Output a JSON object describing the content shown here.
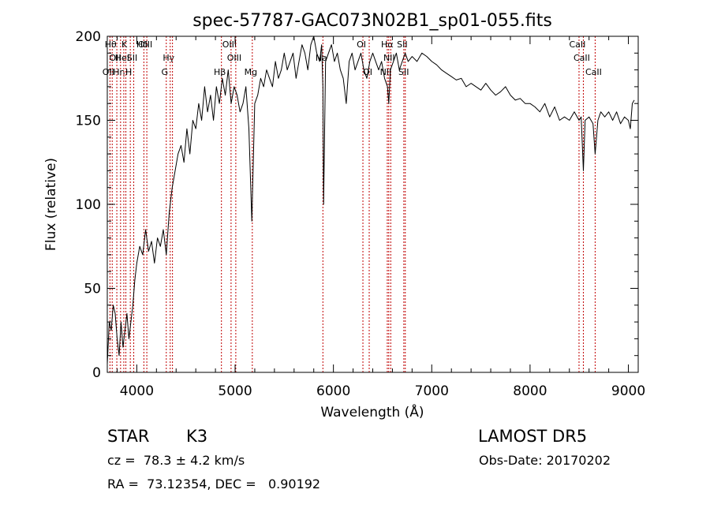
{
  "chart_data": {
    "type": "line",
    "title": "spec-57787-GAC073N02B1_sp01-055.fits",
    "xlabel": "Wavelength (Å)",
    "ylabel": "Flux (relative)",
    "xlim": [
      3700,
      9100
    ],
    "ylim": [
      0,
      200
    ],
    "x_ticks": [
      4000,
      5000,
      6000,
      7000,
      8000,
      9000
    ],
    "y_ticks": [
      0,
      50,
      100,
      150,
      200
    ],
    "grid": false,
    "line_color": "#000000",
    "marker_color": "#c00000",
    "series": [
      {
        "x": [
          3700,
          3720,
          3740,
          3760,
          3780,
          3800,
          3820,
          3840,
          3860,
          3880,
          3900,
          3920,
          3940,
          3960,
          3980,
          4000,
          4030,
          4060,
          4090,
          4120,
          4150,
          4180,
          4210,
          4240,
          4270,
          4300,
          4330,
          4360,
          4390,
          4420,
          4450,
          4480,
          4510,
          4540,
          4570,
          4600,
          4630,
          4660,
          4690,
          4720,
          4750,
          4780,
          4810,
          4840,
          4870,
          4900,
          4930,
          4960,
          4990,
          5020,
          5050,
          5080,
          5110,
          5140,
          5170,
          5200,
          5230,
          5260,
          5290,
          5320,
          5350,
          5380,
          5410,
          5440,
          5470,
          5500,
          5530,
          5560,
          5590,
          5620,
          5650,
          5680,
          5710,
          5740,
          5770,
          5800,
          5830,
          5860,
          5880,
          5893,
          5900,
          5920,
          5950,
          5980,
          6010,
          6040,
          6070,
          6100,
          6130,
          6160,
          6190,
          6220,
          6250,
          6280,
          6310,
          6340,
          6370,
          6400,
          6430,
          6460,
          6490,
          6520,
          6550,
          6563,
          6580,
          6610,
          6640,
          6670,
          6700,
          6730,
          6760,
          6800,
          6850,
          6900,
          6950,
          7000,
          7050,
          7100,
          7150,
          7200,
          7250,
          7300,
          7350,
          7400,
          7450,
          7500,
          7550,
          7600,
          7650,
          7700,
          7750,
          7800,
          7850,
          7900,
          7950,
          8000,
          8050,
          8100,
          8150,
          8200,
          8250,
          8300,
          8350,
          8400,
          8450,
          8498,
          8520,
          8542,
          8560,
          8600,
          8640,
          8662,
          8690,
          8720,
          8760,
          8800,
          8840,
          8880,
          8920,
          8960,
          9000,
          9020,
          9040,
          9060
        ],
        "y": [
          5,
          30,
          25,
          40,
          35,
          20,
          10,
          30,
          15,
          25,
          35,
          20,
          30,
          40,
          55,
          65,
          75,
          70,
          85,
          72,
          78,
          65,
          80,
          75,
          85,
          70,
          95,
          110,
          120,
          130,
          135,
          125,
          145,
          130,
          150,
          145,
          160,
          150,
          170,
          155,
          165,
          150,
          170,
          160,
          175,
          165,
          180,
          160,
          170,
          165,
          155,
          160,
          170,
          145,
          90,
          160,
          165,
          175,
          170,
          180,
          175,
          170,
          185,
          175,
          180,
          190,
          180,
          185,
          190,
          175,
          185,
          195,
          190,
          180,
          195,
          200,
          190,
          185,
          195,
          170,
          100,
          185,
          190,
          195,
          185,
          190,
          180,
          175,
          160,
          185,
          190,
          180,
          185,
          190,
          180,
          175,
          185,
          190,
          185,
          180,
          185,
          175,
          170,
          160,
          180,
          185,
          190,
          180,
          185,
          190,
          185,
          188,
          185,
          190,
          188,
          185,
          183,
          180,
          178,
          176,
          174,
          175,
          170,
          172,
          170,
          168,
          172,
          168,
          165,
          167,
          170,
          165,
          162,
          163,
          160,
          160,
          158,
          155,
          160,
          152,
          158,
          150,
          152,
          150,
          155,
          150,
          152,
          120,
          150,
          152,
          148,
          130,
          150,
          155,
          152,
          155,
          150,
          155,
          148,
          152,
          150,
          145,
          160,
          162
        ]
      }
    ],
    "line_markers": [
      {
        "x": 3727,
        "labels": [
          "OII"
        ],
        "row": 2
      },
      {
        "x": 3750,
        "labels": [
          "Hθ"
        ],
        "row": 0
      },
      {
        "x": 3797,
        "labels": [
          "OII"
        ],
        "row": 1
      },
      {
        "x": 3835,
        "labels": [
          "Hη"
        ],
        "row": 2
      },
      {
        "x": 3868,
        "labels": [
          "HeI"
        ],
        "row": 1
      },
      {
        "x": 3889,
        "labels": [
          "K"
        ],
        "row": 0
      },
      {
        "x": 3934,
        "labels": [
          "H"
        ],
        "row": 2
      },
      {
        "x": 3969,
        "labels": [
          "SII"
        ],
        "row": 1
      },
      {
        "x": 4072,
        "labels": [
          "Hδ"
        ],
        "row": 0
      },
      {
        "x": 4102,
        "labels": [
          "OIII"
        ],
        "row": 0
      },
      {
        "x": 4300,
        "labels": [
          "G"
        ],
        "row": 2
      },
      {
        "x": 4340,
        "labels": [
          "Hγ"
        ],
        "row": 1
      },
      {
        "x": 4363,
        "labels": [],
        "row": 0
      },
      {
        "x": 4861,
        "labels": [
          "Hβ"
        ],
        "row": 2
      },
      {
        "x": 4959,
        "labels": [
          "OIII"
        ],
        "row": 0
      },
      {
        "x": 5007,
        "labels": [
          "OIII"
        ],
        "row": 1
      },
      {
        "x": 5175,
        "labels": [
          "Mg"
        ],
        "row": 2
      },
      {
        "x": 5893,
        "labels": [
          "Na"
        ],
        "row": 1
      },
      {
        "x": 6300,
        "labels": [
          "OI"
        ],
        "row": 0
      },
      {
        "x": 6364,
        "labels": [
          "OI"
        ],
        "row": 2
      },
      {
        "x": 6548,
        "labels": [
          "NII"
        ],
        "row": 2
      },
      {
        "x": 6563,
        "labels": [
          "Hα"
        ],
        "row": 0
      },
      {
        "x": 6583,
        "labels": [
          "NII"
        ],
        "row": 1
      },
      {
        "x": 6716,
        "labels": [
          "SII"
        ],
        "row": 0
      },
      {
        "x": 6731,
        "labels": [
          "SII"
        ],
        "row": 2
      },
      {
        "x": 8498,
        "labels": [
          "CaII"
        ],
        "row": 0
      },
      {
        "x": 8542,
        "labels": [
          "CaII"
        ],
        "row": 1
      },
      {
        "x": 8662,
        "labels": [
          "CaII"
        ],
        "row": 2
      }
    ]
  },
  "info": {
    "object_class": "STAR",
    "subclass": "K3",
    "survey": "LAMOST DR5",
    "redshift": "cz =  78.3 ± 4.2 km/s",
    "obs_date": "Obs-Date: 20170202",
    "coords": "RA =  73.12354, DEC =   0.90192"
  }
}
